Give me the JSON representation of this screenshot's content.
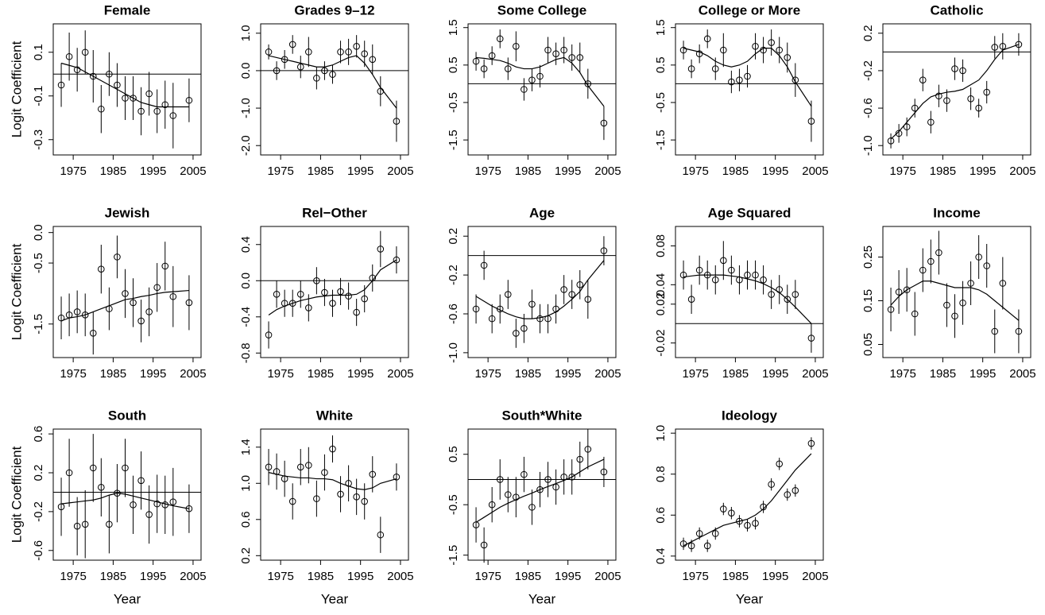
{
  "chart_data": [
    {
      "type": "scatter",
      "title": "Female",
      "ylabel": "Logit Coefficient",
      "x": [
        1972,
        1974,
        1976,
        1978,
        1980,
        1982,
        1984,
        1986,
        1988,
        1990,
        1992,
        1994,
        1996,
        1998,
        2000,
        2004
      ],
      "values": [
        -0.05,
        0.08,
        0.02,
        0.1,
        -0.01,
        -0.16,
        0.0,
        -0.05,
        -0.11,
        -0.11,
        -0.17,
        -0.09,
        -0.17,
        -0.14,
        -0.19,
        -0.12
      ],
      "errors": [
        0.1,
        0.11,
        0.1,
        0.1,
        0.12,
        0.11,
        0.1,
        0.1,
        0.1,
        0.1,
        0.11,
        0.1,
        0.1,
        0.11,
        0.15,
        0.1
      ],
      "smooth": [
        0.05,
        0.04,
        0.03,
        0.01,
        -0.01,
        -0.03,
        -0.05,
        -0.07,
        -0.09,
        -0.11,
        -0.13,
        -0.14,
        -0.15,
        -0.15,
        -0.15,
        -0.15
      ],
      "hline": 0,
      "xlim": [
        1970,
        2007
      ],
      "xticks": [
        1975,
        1985,
        1995,
        2005
      ],
      "ylim": [
        -0.37,
        0.23
      ],
      "yticks": [
        -0.3,
        -0.1,
        0.1
      ]
    },
    {
      "type": "scatter",
      "title": "Grades 9–12",
      "x": [
        1972,
        1974,
        1976,
        1978,
        1980,
        1982,
        1984,
        1986,
        1988,
        1990,
        1992,
        1994,
        1996,
        1998,
        2000,
        2004
      ],
      "values": [
        0.5,
        0.0,
        0.3,
        0.7,
        0.1,
        0.5,
        -0.2,
        0.0,
        -0.1,
        0.5,
        0.5,
        0.65,
        0.45,
        0.3,
        -0.55,
        -1.35
      ],
      "errors": [
        0.2,
        0.25,
        0.25,
        0.25,
        0.3,
        0.4,
        0.3,
        0.25,
        0.25,
        0.3,
        0.35,
        0.3,
        0.35,
        0.4,
        0.4,
        0.55
      ],
      "smooth": [
        0.4,
        0.35,
        0.3,
        0.25,
        0.2,
        0.15,
        0.1,
        0.1,
        0.15,
        0.25,
        0.35,
        0.4,
        0.2,
        -0.1,
        -0.45,
        -1.0
      ],
      "hline": 0,
      "xlim": [
        1970,
        2007
      ],
      "xticks": [
        1975,
        1985,
        1995,
        2005
      ],
      "ylim": [
        -2.25,
        1.25
      ],
      "yticks": [
        {
          "value": -2,
          "label": "-2.0"
        },
        {
          "value": -1,
          "label": "-1.0"
        },
        {
          "value": 0,
          "label": "0.0"
        },
        {
          "value": 1,
          "label": "1.0"
        }
      ]
    },
    {
      "type": "scatter",
      "title": "Some College",
      "x": [
        1972,
        1974,
        1976,
        1978,
        1980,
        1982,
        1984,
        1986,
        1988,
        1990,
        1992,
        1994,
        1996,
        1998,
        2000,
        2004
      ],
      "values": [
        0.6,
        0.4,
        0.75,
        1.2,
        0.4,
        1.0,
        -0.15,
        0.1,
        0.2,
        0.9,
        0.8,
        0.9,
        0.7,
        0.7,
        0.0,
        -1.05
      ],
      "errors": [
        0.25,
        0.25,
        0.25,
        0.25,
        0.3,
        0.4,
        0.3,
        0.3,
        0.3,
        0.35,
        0.3,
        0.35,
        0.35,
        0.4,
        0.4,
        0.45
      ],
      "smooth": [
        0.7,
        0.68,
        0.65,
        0.62,
        0.55,
        0.45,
        0.4,
        0.4,
        0.45,
        0.55,
        0.65,
        0.7,
        0.55,
        0.3,
        -0.05,
        -0.6
      ],
      "hline": 0,
      "xlim": [
        1970,
        2007
      ],
      "xticks": [
        1975,
        1985,
        1995,
        2005
      ],
      "ylim": [
        -1.9,
        1.6
      ],
      "yticks": [
        -1.5,
        -0.5,
        0.5,
        1.5
      ]
    },
    {
      "type": "scatter",
      "title": "College or More",
      "x": [
        1972,
        1974,
        1976,
        1978,
        1980,
        1982,
        1984,
        1986,
        1988,
        1990,
        1992,
        1994,
        1996,
        1998,
        2000,
        2004
      ],
      "values": [
        0.9,
        0.4,
        0.8,
        1.2,
        0.4,
        0.9,
        0.05,
        0.1,
        0.2,
        1.0,
        0.9,
        1.1,
        0.9,
        0.7,
        0.1,
        -1.0
      ],
      "errors": [
        0.25,
        0.25,
        0.25,
        0.25,
        0.3,
        0.45,
        0.3,
        0.3,
        0.3,
        0.35,
        0.35,
        0.35,
        0.35,
        0.4,
        0.45,
        0.55
      ],
      "smooth": [
        0.95,
        0.9,
        0.85,
        0.75,
        0.6,
        0.5,
        0.45,
        0.5,
        0.6,
        0.8,
        0.95,
        0.95,
        0.75,
        0.45,
        0.05,
        -0.6
      ],
      "hline": 0,
      "xlim": [
        1970,
        2007
      ],
      "xticks": [
        1975,
        1985,
        1995,
        2005
      ],
      "ylim": [
        -1.9,
        1.6
      ],
      "yticks": [
        -1.5,
        -0.5,
        0.5,
        1.5
      ]
    },
    {
      "type": "scatter",
      "title": "Catholic",
      "x": [
        1972,
        1974,
        1976,
        1978,
        1980,
        1982,
        1984,
        1986,
        1988,
        1990,
        1992,
        1994,
        1996,
        1998,
        2000,
        2004
      ],
      "values": [
        -0.95,
        -0.87,
        -0.8,
        -0.6,
        -0.3,
        -0.75,
        -0.47,
        -0.52,
        -0.18,
        -0.2,
        -0.5,
        -0.6,
        -0.43,
        0.05,
        0.06,
        0.08
      ],
      "errors": [
        0.08,
        0.1,
        0.1,
        0.1,
        0.12,
        0.12,
        0.12,
        0.12,
        0.12,
        0.12,
        0.12,
        0.1,
        0.12,
        0.12,
        0.14,
        0.12
      ],
      "smooth": [
        -0.93,
        -0.85,
        -0.75,
        -0.65,
        -0.55,
        -0.48,
        -0.45,
        -0.43,
        -0.42,
        -0.4,
        -0.35,
        -0.3,
        -0.2,
        -0.08,
        0.02,
        0.08
      ],
      "hline": 0,
      "xlim": [
        1970,
        2007
      ],
      "xticks": [
        1975,
        1985,
        1995,
        2005
      ],
      "ylim": [
        -1.1,
        0.3
      ],
      "yticks": [
        {
          "value": -1,
          "label": "-1.0"
        },
        -0.6,
        -0.2,
        0.2
      ]
    },
    {
      "type": "scatter",
      "title": "Jewish",
      "ylabel": "Logit Coefficient",
      "x": [
        1972,
        1974,
        1976,
        1978,
        1980,
        1982,
        1984,
        1986,
        1988,
        1990,
        1992,
        1994,
        1996,
        1998,
        2000,
        2004
      ],
      "values": [
        -1.4,
        -1.35,
        -1.3,
        -1.35,
        -1.65,
        -0.6,
        -1.25,
        -0.4,
        -1.0,
        -1.15,
        -1.45,
        -1.3,
        -0.9,
        -0.55,
        -1.05,
        -1.15
      ],
      "errors": [
        0.35,
        0.35,
        0.35,
        0.35,
        0.35,
        0.4,
        0.35,
        0.35,
        0.4,
        0.4,
        0.35,
        0.4,
        0.4,
        0.4,
        0.5,
        0.45
      ],
      "smooth": [
        -1.45,
        -1.4,
        -1.38,
        -1.35,
        -1.3,
        -1.25,
        -1.2,
        -1.15,
        -1.1,
        -1.08,
        -1.05,
        -1.03,
        -1.0,
        -0.98,
        -0.97,
        -0.95
      ],
      "xlim": [
        1970,
        2007
      ],
      "xticks": [
        1975,
        1985,
        1995,
        2005
      ],
      "ylim": [
        -2.05,
        0.1
      ],
      "yticks": [
        -1.5,
        -0.5,
        {
          "value": 0,
          "label": "0.0"
        }
      ]
    },
    {
      "type": "scatter",
      "title": "Rel−Other",
      "x": [
        1972,
        1974,
        1976,
        1978,
        1980,
        1982,
        1984,
        1986,
        1988,
        1990,
        1992,
        1994,
        1996,
        1998,
        2000,
        2004
      ],
      "values": [
        -0.6,
        -0.15,
        -0.25,
        -0.25,
        -0.15,
        -0.3,
        0.0,
        -0.13,
        -0.25,
        -0.12,
        -0.17,
        -0.35,
        -0.2,
        0.03,
        0.35,
        0.23
      ],
      "errors": [
        0.15,
        0.15,
        0.15,
        0.15,
        0.15,
        0.15,
        0.15,
        0.15,
        0.15,
        0.15,
        0.15,
        0.15,
        0.15,
        0.15,
        0.2,
        0.15
      ],
      "smooth": [
        -0.38,
        -0.32,
        -0.28,
        -0.25,
        -0.22,
        -0.2,
        -0.18,
        -0.17,
        -0.16,
        -0.16,
        -0.16,
        -0.15,
        -0.1,
        0.0,
        0.12,
        0.23
      ],
      "hline": 0,
      "xlim": [
        1970,
        2007
      ],
      "xticks": [
        1975,
        1985,
        1995,
        2005
      ],
      "ylim": [
        -0.85,
        0.6
      ],
      "yticks": [
        -0.8,
        -0.4,
        {
          "value": 0,
          "label": "0.0"
        },
        0.4
      ]
    },
    {
      "type": "scatter",
      "title": "Age",
      "x": [
        1972,
        1974,
        1976,
        1978,
        1980,
        1982,
        1984,
        1986,
        1988,
        1990,
        1992,
        1994,
        1996,
        1998,
        2000,
        2004
      ],
      "values": [
        -0.55,
        -0.1,
        -0.65,
        -0.55,
        -0.4,
        -0.8,
        -0.75,
        -0.5,
        -0.65,
        -0.65,
        -0.55,
        -0.35,
        -0.4,
        -0.3,
        -0.45,
        0.05
      ],
      "errors": [
        0.15,
        0.15,
        0.15,
        0.15,
        0.15,
        0.15,
        0.15,
        0.15,
        0.15,
        0.15,
        0.15,
        0.15,
        0.15,
        0.15,
        0.2,
        0.15
      ],
      "smooth": [
        -0.42,
        -0.47,
        -0.52,
        -0.56,
        -0.6,
        -0.63,
        -0.65,
        -0.65,
        -0.64,
        -0.62,
        -0.58,
        -0.52,
        -0.45,
        -0.37,
        -0.25,
        -0.05
      ],
      "hline": 0,
      "xlim": [
        1970,
        2007
      ],
      "xticks": [
        1975,
        1985,
        1995,
        2005
      ],
      "ylim": [
        -1.05,
        0.3
      ],
      "yticks": [
        {
          "value": -1,
          "label": "-1.0"
        },
        -0.6,
        -0.2,
        0.2
      ]
    },
    {
      "type": "scatter",
      "title": "Age Squared",
      "x": [
        1972,
        1974,
        1976,
        1978,
        1980,
        1982,
        1984,
        1986,
        1988,
        1990,
        1992,
        1994,
        1996,
        1998,
        2000,
        2004
      ],
      "values": [
        0.05,
        0.025,
        0.055,
        0.05,
        0.045,
        0.065,
        0.055,
        0.045,
        0.05,
        0.05,
        0.045,
        0.03,
        0.035,
        0.025,
        0.03,
        -0.015
      ],
      "errors": [
        0.015,
        0.015,
        0.015,
        0.015,
        0.015,
        0.02,
        0.015,
        0.015,
        0.015,
        0.015,
        0.015,
        0.015,
        0.015,
        0.015,
        0.015,
        0.015
      ],
      "smooth": [
        0.048,
        0.049,
        0.05,
        0.05,
        0.05,
        0.05,
        0.049,
        0.048,
        0.046,
        0.044,
        0.041,
        0.037,
        0.032,
        0.025,
        0.017,
        0.0
      ],
      "hline": 0,
      "xlim": [
        1970,
        2007
      ],
      "xticks": [
        1975,
        1985,
        1995,
        2005
      ],
      "ylim": [
        -0.035,
        0.1
      ],
      "yticks": [
        -0.02,
        0.02,
        0.04,
        0.08
      ]
    },
    {
      "type": "scatter",
      "title": "Income",
      "x": [
        1972,
        1974,
        1976,
        1978,
        1980,
        1982,
        1984,
        1986,
        1988,
        1990,
        1992,
        1994,
        1996,
        1998,
        2000,
        2004
      ],
      "values": [
        0.13,
        0.17,
        0.175,
        0.12,
        0.22,
        0.24,
        0.26,
        0.14,
        0.115,
        0.145,
        0.19,
        0.25,
        0.23,
        0.08,
        0.19,
        0.08
      ],
      "errors": [
        0.05,
        0.05,
        0.05,
        0.05,
        0.05,
        0.05,
        0.05,
        0.05,
        0.05,
        0.05,
        0.05,
        0.05,
        0.05,
        0.05,
        0.06,
        0.05
      ],
      "smooth": [
        0.14,
        0.16,
        0.175,
        0.185,
        0.195,
        0.195,
        0.19,
        0.185,
        0.18,
        0.18,
        0.18,
        0.175,
        0.165,
        0.15,
        0.135,
        0.105
      ],
      "xlim": [
        1970,
        2007
      ],
      "xticks": [
        1975,
        1985,
        1995,
        2005
      ],
      "ylim": [
        0.02,
        0.32
      ],
      "yticks": [
        0.05,
        0.15,
        0.25
      ]
    },
    {
      "type": "scatter",
      "title": "South",
      "ylabel": "Logit Coefficient",
      "xlabel": "Year",
      "x": [
        1972,
        1974,
        1976,
        1978,
        1980,
        1982,
        1984,
        1986,
        1988,
        1990,
        1992,
        1994,
        1996,
        1998,
        2000,
        2004
      ],
      "values": [
        -0.15,
        0.2,
        -0.35,
        -0.33,
        0.25,
        0.05,
        -0.33,
        -0.01,
        0.25,
        -0.13,
        0.12,
        -0.23,
        -0.12,
        -0.13,
        -0.1,
        -0.17
      ],
      "errors": [
        0.3,
        0.35,
        0.3,
        0.35,
        0.35,
        0.3,
        0.3,
        0.3,
        0.3,
        0.3,
        0.3,
        0.3,
        0.3,
        0.3,
        0.35,
        0.25
      ],
      "smooth": [
        -0.12,
        -0.11,
        -0.1,
        -0.09,
        -0.08,
        -0.06,
        -0.03,
        -0.01,
        -0.02,
        -0.04,
        -0.06,
        -0.08,
        -0.1,
        -0.12,
        -0.14,
        -0.17
      ],
      "hline": 0,
      "xlim": [
        1970,
        2007
      ],
      "xticks": [
        1975,
        1985,
        1995,
        2005
      ],
      "ylim": [
        -0.7,
        0.65
      ],
      "yticks": [
        -0.6,
        -0.2,
        0.2,
        0.6
      ]
    },
    {
      "type": "scatter",
      "title": "White",
      "xlabel": "Year",
      "x": [
        1972,
        1974,
        1976,
        1978,
        1980,
        1982,
        1984,
        1986,
        1988,
        1990,
        1992,
        1994,
        1996,
        1998,
        2000,
        2004
      ],
      "values": [
        1.18,
        1.13,
        1.05,
        0.8,
        1.18,
        1.2,
        0.83,
        1.12,
        1.38,
        0.88,
        1.0,
        0.85,
        0.8,
        1.1,
        0.43,
        1.07
      ],
      "errors": [
        0.2,
        0.2,
        0.2,
        0.2,
        0.2,
        0.2,
        0.2,
        0.2,
        0.15,
        0.2,
        0.2,
        0.2,
        0.2,
        0.2,
        0.2,
        0.15
      ],
      "smooth": [
        1.12,
        1.1,
        1.08,
        1.07,
        1.06,
        1.06,
        1.05,
        1.05,
        1.04,
        1.0,
        0.97,
        0.94,
        0.93,
        0.95,
        1.0,
        1.05
      ],
      "xlim": [
        1970,
        2007
      ],
      "xticks": [
        1975,
        1985,
        1995,
        2005
      ],
      "ylim": [
        0.15,
        1.6
      ],
      "yticks": [
        0.2,
        0.6,
        {
          "value": 1,
          "label": "1.0"
        },
        1.4
      ]
    },
    {
      "type": "scatter",
      "title": "South*White",
      "xlabel": "Year",
      "x": [
        1972,
        1974,
        1976,
        1978,
        1980,
        1982,
        1984,
        1986,
        1988,
        1990,
        1992,
        1994,
        1996,
        1998,
        2000,
        2004
      ],
      "values": [
        -0.9,
        -1.3,
        -0.5,
        0.0,
        -0.3,
        -0.35,
        0.1,
        -0.55,
        -0.2,
        0.0,
        -0.15,
        0.05,
        0.05,
        0.4,
        0.6,
        0.15
      ],
      "errors": [
        0.35,
        0.35,
        0.35,
        0.4,
        0.35,
        0.4,
        0.35,
        0.35,
        0.35,
        0.35,
        0.35,
        0.35,
        0.35,
        0.35,
        0.4,
        0.3
      ],
      "smooth": [
        -0.85,
        -0.75,
        -0.65,
        -0.55,
        -0.47,
        -0.4,
        -0.33,
        -0.27,
        -0.2,
        -0.14,
        -0.08,
        -0.02,
        0.05,
        0.15,
        0.25,
        0.4
      ],
      "hline": 0,
      "xlim": [
        1970,
        2007
      ],
      "xticks": [
        1975,
        1985,
        1995,
        2005
      ],
      "ylim": [
        -1.6,
        1.0
      ],
      "yticks": [
        -1.5,
        -0.5,
        0.5
      ]
    },
    {
      "type": "scatter",
      "title": "Ideology",
      "xlabel": "Year",
      "x": [
        1972,
        1974,
        1976,
        1978,
        1980,
        1982,
        1984,
        1986,
        1988,
        1990,
        1992,
        1994,
        1996,
        1998,
        2000,
        2004
      ],
      "values": [
        0.46,
        0.45,
        0.51,
        0.45,
        0.51,
        0.63,
        0.61,
        0.57,
        0.55,
        0.56,
        0.64,
        0.75,
        0.85,
        0.7,
        0.72,
        0.95
      ],
      "errors": [
        0.03,
        0.03,
        0.03,
        0.03,
        0.03,
        0.03,
        0.03,
        0.03,
        0.03,
        0.03,
        0.03,
        0.03,
        0.03,
        0.03,
        0.03,
        0.03
      ],
      "smooth": [
        0.45,
        0.47,
        0.49,
        0.51,
        0.53,
        0.55,
        0.56,
        0.57,
        0.58,
        0.6,
        0.63,
        0.67,
        0.72,
        0.77,
        0.82,
        0.9
      ],
      "xlim": [
        1970,
        2007
      ],
      "xticks": [
        1975,
        1985,
        1995,
        2005
      ],
      "ylim": [
        0.38,
        1.02
      ],
      "yticks": [
        0.4,
        0.6,
        0.8,
        {
          "value": 1,
          "label": "1.0"
        }
      ]
    }
  ]
}
